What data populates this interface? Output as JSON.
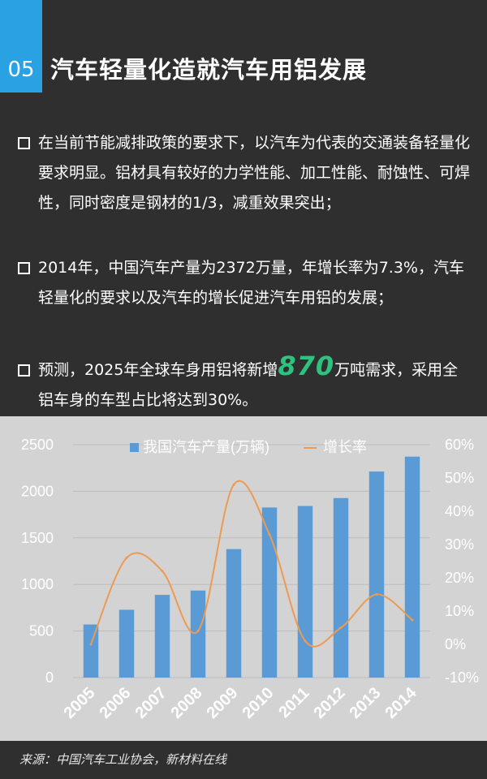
{
  "header": {
    "section_number": "05",
    "title": "汽车轻量化造就汽车用铝发展"
  },
  "bullets": [
    {
      "text": "在当前节能减排政策的要求下，以汽车为代表的交通装备轻量化要求明显。铝材具有较好的力学性能、加工性能、耐蚀性、可焊性，同时密度是钢材的1/3，减重效果突出；"
    },
    {
      "text": "2014年，中国汽车产量为2372万量，年增长率为7.3%，汽车轻量化的要求以及汽车的增长促进汽车用铝的发展；"
    },
    {
      "text_before": "预测，2025年全球车身用铝将新增",
      "highlight": "870",
      "text_after": "万吨需求，采用全铝车身的车型占比将达到30%。"
    }
  ],
  "chart_data": {
    "type": "bar",
    "categories": [
      "2005",
      "2006",
      "2007",
      "2008",
      "2009",
      "2010",
      "2011",
      "2012",
      "2013",
      "2014"
    ],
    "series": [
      {
        "name": "我国汽车产量(万辆)",
        "type": "bar",
        "axis": "left",
        "color": "#5b9bd5",
        "values": [
          570,
          728,
          888,
          934,
          1379,
          1826,
          1842,
          1927,
          2212,
          2372
        ]
      },
      {
        "name": "增长率",
        "type": "line",
        "axis": "right",
        "color": "#ed9a52",
        "values": [
          0.0,
          26.0,
          22.0,
          4.0,
          48.0,
          33.0,
          1.0,
          5.0,
          15.0,
          7.3
        ]
      }
    ],
    "ylim_left": [
      0,
      2500
    ],
    "yticks_left": [
      "0",
      "500",
      "1000",
      "1500",
      "2000",
      "2500"
    ],
    "ylim_right": [
      -10,
      60
    ],
    "yticks_right": [
      "-10%",
      "0%",
      "10%",
      "20%",
      "30%",
      "40%",
      "50%",
      "60%"
    ],
    "legend": "top",
    "grid": true
  },
  "source": "来源：中国汽车工业协会，新材料在线"
}
